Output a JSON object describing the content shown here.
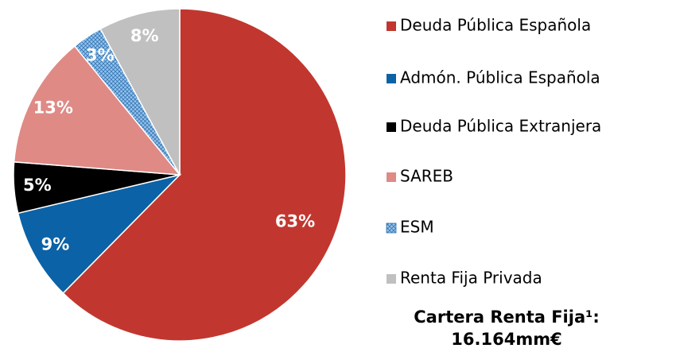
{
  "chart_data": {
    "type": "pie",
    "categories": [
      "Deuda Pública Española",
      "Admón. Pública Española",
      "Deuda Pública Extranjera",
      "SAREB",
      "ESM",
      "Renta Fija Privada"
    ],
    "values": [
      63,
      9,
      5,
      13,
      3,
      8
    ],
    "value_labels": [
      "63%",
      "9%",
      "5%",
      "13%",
      "3%",
      "8%"
    ],
    "colors": [
      "#c1372f",
      "#0b62a6",
      "#000000",
      "#df8a85",
      "#9cc3e8",
      "#c0c0c0"
    ],
    "hatched": [
      false,
      false,
      false,
      false,
      true,
      false
    ],
    "annotation": [
      "Cartera Renta Fija¹:",
      "16.164mm€"
    ]
  }
}
